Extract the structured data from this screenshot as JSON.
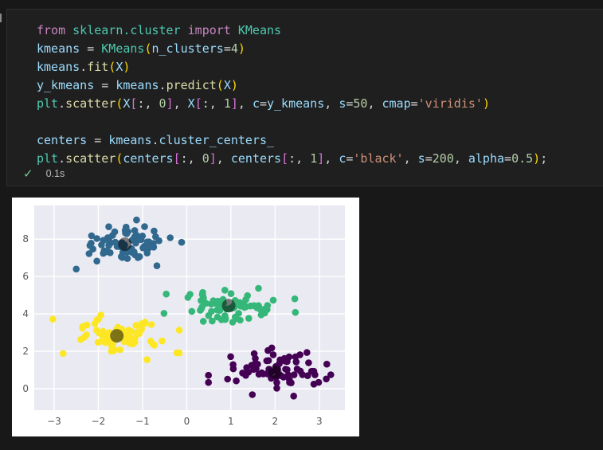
{
  "cell": {
    "execution_time": "0.1s",
    "check_icon": "✓",
    "token_colors": {
      "kw": "#C586C0",
      "mod": "#4EC9B0",
      "var": "#9CDCFE",
      "fn": "#DCDCAA",
      "num": "#B5CEA8",
      "str": "#CE9178",
      "pun": "#D4D4D4",
      "br1": "#FFD700",
      "br2": "#DA70D6"
    },
    "code_lines": [
      [
        {
          "t": "from ",
          "c": "kw"
        },
        {
          "t": "sklearn.cluster ",
          "c": "mod"
        },
        {
          "t": "import ",
          "c": "kw"
        },
        {
          "t": "KMeans",
          "c": "mod"
        }
      ],
      [
        {
          "t": "kmeans ",
          "c": "var"
        },
        {
          "t": "= ",
          "c": "pun"
        },
        {
          "t": "KMeans",
          "c": "mod"
        },
        {
          "t": "(",
          "c": "br1"
        },
        {
          "t": "n_clusters",
          "c": "var"
        },
        {
          "t": "=",
          "c": "pun"
        },
        {
          "t": "4",
          "c": "num"
        },
        {
          "t": ")",
          "c": "br1"
        }
      ],
      [
        {
          "t": "kmeans",
          "c": "var"
        },
        {
          "t": ".",
          "c": "pun"
        },
        {
          "t": "fit",
          "c": "fn"
        },
        {
          "t": "(",
          "c": "br1"
        },
        {
          "t": "X",
          "c": "var"
        },
        {
          "t": ")",
          "c": "br1"
        }
      ],
      [
        {
          "t": "y_kmeans ",
          "c": "var"
        },
        {
          "t": "= ",
          "c": "pun"
        },
        {
          "t": "kmeans",
          "c": "var"
        },
        {
          "t": ".",
          "c": "pun"
        },
        {
          "t": "predict",
          "c": "fn"
        },
        {
          "t": "(",
          "c": "br1"
        },
        {
          "t": "X",
          "c": "var"
        },
        {
          "t": ")",
          "c": "br1"
        }
      ],
      [
        {
          "t": "plt",
          "c": "mod"
        },
        {
          "t": ".",
          "c": "pun"
        },
        {
          "t": "scatter",
          "c": "fn"
        },
        {
          "t": "(",
          "c": "br1"
        },
        {
          "t": "X",
          "c": "var"
        },
        {
          "t": "[",
          "c": "br2"
        },
        {
          "t": ":, ",
          "c": "pun"
        },
        {
          "t": "0",
          "c": "num"
        },
        {
          "t": "]",
          "c": "br2"
        },
        {
          "t": ", ",
          "c": "pun"
        },
        {
          "t": "X",
          "c": "var"
        },
        {
          "t": "[",
          "c": "br2"
        },
        {
          "t": ":, ",
          "c": "pun"
        },
        {
          "t": "1",
          "c": "num"
        },
        {
          "t": "]",
          "c": "br2"
        },
        {
          "t": ", ",
          "c": "pun"
        },
        {
          "t": "c",
          "c": "var"
        },
        {
          "t": "=",
          "c": "pun"
        },
        {
          "t": "y_kmeans",
          "c": "var"
        },
        {
          "t": ", ",
          "c": "pun"
        },
        {
          "t": "s",
          "c": "var"
        },
        {
          "t": "=",
          "c": "pun"
        },
        {
          "t": "50",
          "c": "num"
        },
        {
          "t": ", ",
          "c": "pun"
        },
        {
          "t": "cmap",
          "c": "var"
        },
        {
          "t": "=",
          "c": "pun"
        },
        {
          "t": "'viridis'",
          "c": "str"
        },
        {
          "t": ")",
          "c": "br1"
        }
      ],
      [],
      [
        {
          "t": "centers ",
          "c": "var"
        },
        {
          "t": "= ",
          "c": "pun"
        },
        {
          "t": "kmeans",
          "c": "var"
        },
        {
          "t": ".",
          "c": "pun"
        },
        {
          "t": "cluster_centers_",
          "c": "var"
        }
      ],
      [
        {
          "t": "plt",
          "c": "mod"
        },
        {
          "t": ".",
          "c": "pun"
        },
        {
          "t": "scatter",
          "c": "fn"
        },
        {
          "t": "(",
          "c": "br1"
        },
        {
          "t": "centers",
          "c": "var"
        },
        {
          "t": "[",
          "c": "br2"
        },
        {
          "t": ":, ",
          "c": "pun"
        },
        {
          "t": "0",
          "c": "num"
        },
        {
          "t": "]",
          "c": "br2"
        },
        {
          "t": ", ",
          "c": "pun"
        },
        {
          "t": "centers",
          "c": "var"
        },
        {
          "t": "[",
          "c": "br2"
        },
        {
          "t": ":, ",
          "c": "pun"
        },
        {
          "t": "1",
          "c": "num"
        },
        {
          "t": "]",
          "c": "br2"
        },
        {
          "t": ", ",
          "c": "pun"
        },
        {
          "t": "c",
          "c": "var"
        },
        {
          "t": "=",
          "c": "pun"
        },
        {
          "t": "'black'",
          "c": "str"
        },
        {
          "t": ", ",
          "c": "pun"
        },
        {
          "t": "s",
          "c": "var"
        },
        {
          "t": "=",
          "c": "pun"
        },
        {
          "t": "200",
          "c": "num"
        },
        {
          "t": ", ",
          "c": "pun"
        },
        {
          "t": "alpha",
          "c": "var"
        },
        {
          "t": "=",
          "c": "pun"
        },
        {
          "t": "0.5",
          "c": "num"
        },
        {
          "t": ")",
          "c": "br1"
        },
        {
          "t": ";",
          "c": "pun"
        }
      ]
    ]
  },
  "chart_data": {
    "type": "scatter",
    "title": "",
    "xlabel": "",
    "ylabel": "",
    "xticks": [
      -3,
      -2,
      -1,
      0,
      1,
      2,
      3
    ],
    "yticks": [
      0,
      2,
      4,
      6,
      8
    ],
    "xlim": [
      -3.45,
      3.58
    ],
    "ylim": [
      -1.15,
      9.8
    ],
    "grid": true,
    "axes_bg": "#eaeaf2",
    "grid_color": "#ffffff",
    "tick_color": "#555555",
    "figure_bg": "#ffffff",
    "cmap": "viridis",
    "point_radius_px": 4.3,
    "clusters": [
      {
        "name": "cluster-blue",
        "color": "#31688e",
        "center": [
          -1.4,
          7.75
        ],
        "std": [
          0.55,
          0.52
        ],
        "count": 75
      },
      {
        "name": "cluster-green",
        "color": "#35b779",
        "center": [
          0.95,
          4.45
        ],
        "std": [
          0.58,
          0.5
        ],
        "count": 75
      },
      {
        "name": "cluster-yellow",
        "color": "#fde725",
        "center": [
          -1.6,
          2.85
        ],
        "std": [
          0.55,
          0.5
        ],
        "count": 75
      },
      {
        "name": "cluster-purple",
        "color": "#440154",
        "center": [
          2.0,
          0.9
        ],
        "std": [
          0.58,
          0.52
        ],
        "count": 75
      }
    ],
    "centers_overlay": {
      "color": "#000000",
      "opacity": 0.5,
      "radius_px": 8.5,
      "points": [
        [
          -1.4,
          7.73
        ],
        [
          0.95,
          4.44
        ],
        [
          -1.58,
          2.83
        ],
        [
          2.0,
          0.88
        ]
      ]
    }
  }
}
